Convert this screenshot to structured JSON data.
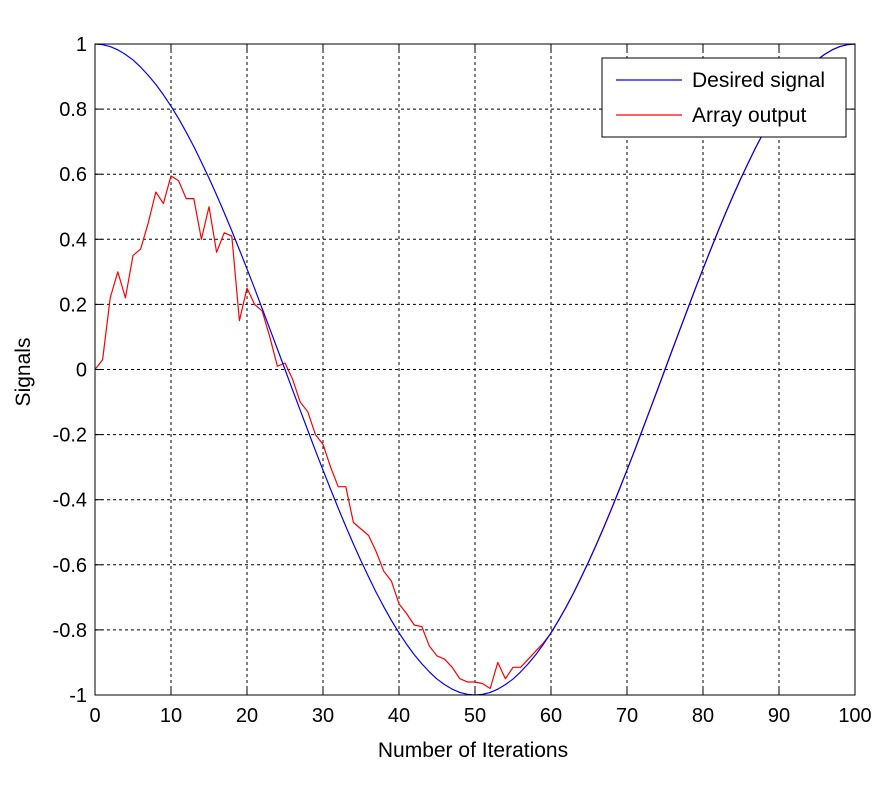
{
  "chart_data": {
    "type": "line",
    "xlabel": "Number of Iterations",
    "ylabel": "Signals",
    "xlim": [
      0,
      100
    ],
    "ylim": [
      -1,
      1
    ],
    "xticks": [
      "0",
      "10",
      "20",
      "30",
      "40",
      "50",
      "60",
      "70",
      "80",
      "90",
      "100"
    ],
    "yticks": [
      "1",
      "0.8",
      "0.6",
      "0.4",
      "0.2",
      "0",
      "-0.2",
      "-0.4",
      "-0.6",
      "-0.8",
      "-1"
    ],
    "grid": true,
    "legend_position": "top-right",
    "series": [
      {
        "name": "Desired signal",
        "color": "#0000ff",
        "x": [
          0,
          1,
          2,
          3,
          4,
          5,
          6,
          7,
          8,
          9,
          10,
          11,
          12,
          13,
          14,
          15,
          16,
          17,
          18,
          19,
          20,
          21,
          22,
          23,
          24,
          25,
          26,
          27,
          28,
          29,
          30,
          31,
          32,
          33,
          34,
          35,
          36,
          37,
          38,
          39,
          40,
          41,
          42,
          43,
          44,
          45,
          46,
          47,
          48,
          49,
          50,
          51,
          52,
          53,
          54,
          55,
          56,
          57,
          58,
          59,
          60,
          61,
          62,
          63,
          64,
          65,
          66,
          67,
          68,
          69,
          70,
          71,
          72,
          73,
          74,
          75,
          76,
          77,
          78,
          79,
          80,
          81,
          82,
          83,
          84,
          85,
          86,
          87,
          88,
          89,
          90,
          91,
          92,
          93,
          94,
          95,
          96,
          97,
          98,
          99,
          100
        ],
        "y": [
          1.0,
          0.998,
          0.992,
          0.982,
          0.968,
          0.951,
          0.929,
          0.904,
          0.876,
          0.844,
          0.809,
          0.771,
          0.729,
          0.685,
          0.637,
          0.588,
          0.536,
          0.482,
          0.426,
          0.368,
          0.309,
          0.249,
          0.187,
          0.125,
          0.063,
          0.0,
          -0.063,
          -0.125,
          -0.187,
          -0.249,
          -0.309,
          -0.368,
          -0.426,
          -0.482,
          -0.536,
          -0.588,
          -0.637,
          -0.685,
          -0.729,
          -0.771,
          -0.809,
          -0.844,
          -0.876,
          -0.904,
          -0.929,
          -0.951,
          -0.968,
          -0.982,
          -0.992,
          -0.998,
          -1.0,
          -0.998,
          -0.992,
          -0.982,
          -0.968,
          -0.951,
          -0.929,
          -0.904,
          -0.876,
          -0.844,
          -0.809,
          -0.771,
          -0.729,
          -0.685,
          -0.637,
          -0.588,
          -0.536,
          -0.482,
          -0.426,
          -0.368,
          -0.309,
          -0.249,
          -0.187,
          -0.125,
          -0.063,
          0.0,
          0.063,
          0.125,
          0.187,
          0.249,
          0.309,
          0.368,
          0.426,
          0.482,
          0.536,
          0.588,
          0.637,
          0.685,
          0.729,
          0.771,
          0.809,
          0.844,
          0.876,
          0.904,
          0.929,
          0.951,
          0.968,
          0.982,
          0.992,
          0.998,
          1.0
        ]
      },
      {
        "name": "Array output",
        "color": "#ff0000",
        "x": [
          0,
          1,
          2,
          3,
          4,
          5,
          6,
          7,
          8,
          9,
          10,
          11,
          12,
          13,
          14,
          15,
          16,
          17,
          18,
          19,
          20,
          21,
          22,
          23,
          24,
          25,
          26,
          27,
          28,
          29,
          30,
          31,
          32,
          33,
          34,
          35,
          36,
          37,
          38,
          39,
          40,
          41,
          42,
          43,
          44,
          45,
          46,
          47,
          48,
          49,
          50,
          51,
          52,
          53,
          54,
          55,
          56,
          57,
          58,
          59,
          60,
          61,
          62,
          63,
          64,
          65,
          66,
          67,
          68,
          69,
          70,
          71,
          72,
          73,
          74,
          75,
          76,
          77,
          78,
          79,
          80,
          81,
          82,
          83,
          84,
          85,
          86,
          87,
          88,
          89,
          90,
          91,
          92,
          93,
          94,
          95,
          96,
          97,
          98,
          99,
          100
        ],
        "y": [
          0.0,
          0.03,
          0.22,
          0.3,
          0.22,
          0.35,
          0.37,
          0.45,
          0.545,
          0.51,
          0.595,
          0.58,
          0.525,
          0.525,
          0.4,
          0.5,
          0.36,
          0.42,
          0.41,
          0.15,
          0.25,
          0.2,
          0.18,
          0.1,
          0.01,
          0.02,
          -0.03,
          -0.1,
          -0.13,
          -0.2,
          -0.23,
          -0.3,
          -0.36,
          -0.36,
          -0.47,
          -0.49,
          -0.51,
          -0.56,
          -0.62,
          -0.65,
          -0.72,
          -0.75,
          -0.785,
          -0.79,
          -0.85,
          -0.88,
          -0.89,
          -0.915,
          -0.95,
          -0.96,
          -0.96,
          -0.965,
          -0.98,
          -0.9,
          -0.95,
          -0.915,
          -0.915,
          -0.89,
          -0.865,
          -0.84,
          -0.81,
          -0.77,
          -0.73,
          -0.685,
          -0.637,
          -0.588,
          -0.536,
          -0.482,
          -0.426,
          -0.368,
          -0.309,
          -0.249,
          -0.187,
          -0.125,
          -0.063,
          0.0,
          0.063,
          0.125,
          0.187,
          0.249,
          0.309,
          0.368,
          0.426,
          0.482,
          0.536,
          0.588,
          0.637,
          0.685,
          0.729,
          0.771,
          0.809,
          0.844,
          0.876,
          0.904,
          0.929,
          0.951,
          0.968,
          0.982,
          0.992,
          0.998,
          1.0
        ]
      }
    ]
  }
}
